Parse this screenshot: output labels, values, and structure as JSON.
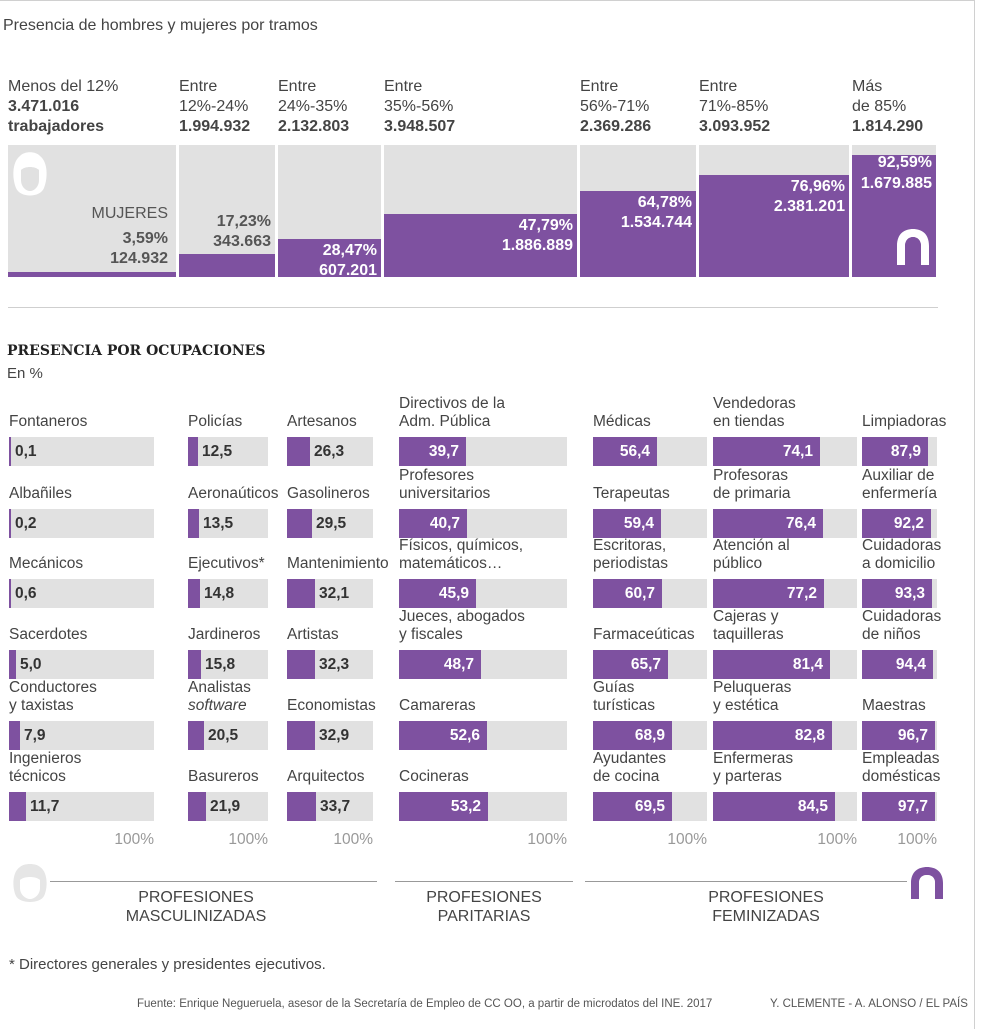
{
  "subtitle": "Presencia de hombres y mujeres por tramos",
  "bands": [
    {
      "line1": "Menos del 12%",
      "line2": "3.471.016",
      "line3": "trabajadores",
      "pct": "3,59%",
      "count": "124.932",
      "share": 3.59,
      "tag": "MUJERES"
    },
    {
      "line1": "Entre",
      "line2": "12%-24%",
      "line3": "1.994.932",
      "pct": "17,23%",
      "count": "343.663",
      "share": 17.23
    },
    {
      "line1": "Entre",
      "line2": "24%-35%",
      "line3": "2.132.803",
      "pct": "28,47%",
      "count": "607.201",
      "share": 28.47
    },
    {
      "line1": "Entre",
      "line2": "35%-56%",
      "line3": "3.948.507",
      "pct": "47,79%",
      "count": "1.886.889",
      "share": 47.79
    },
    {
      "line1": "Entre",
      "line2": "56%-71%",
      "line3": "2.369.286",
      "pct": "64,78%",
      "count": "1.534.744",
      "share": 64.78
    },
    {
      "line1": "Entre",
      "line2": "71%-85%",
      "line3": "3.093.952",
      "pct": "76,96%",
      "count": "2.381.201",
      "share": 76.96
    },
    {
      "line1": "Más",
      "line2": "de 85%",
      "line3": "1.814.290",
      "pct": "92,59%",
      "count": "1.679.885",
      "share": 92.59
    }
  ],
  "section_title": "PRESENCIA POR OCUPACIONES",
  "section_unit": "En %",
  "axis_label": "100%",
  "columns": [
    {
      "items": [
        {
          "l1": "Fontaneros",
          "l2": "",
          "v": 0.1,
          "t": "0,1"
        },
        {
          "l1": "Albañiles",
          "l2": "",
          "v": 0.2,
          "t": "0,2"
        },
        {
          "l1": "Mecánicos",
          "l2": "",
          "v": 0.6,
          "t": "0,6"
        },
        {
          "l1": "Sacerdotes",
          "l2": "",
          "v": 5.0,
          "t": "5,0"
        },
        {
          "l1": "Conductores",
          "l2": "y taxistas",
          "v": 7.9,
          "t": "7,9"
        },
        {
          "l1": "Ingenieros",
          "l2": "técnicos",
          "v": 11.7,
          "t": "11,7"
        }
      ]
    },
    {
      "items": [
        {
          "l1": "Policías",
          "l2": "",
          "v": 12.5,
          "t": "12,5"
        },
        {
          "l1": "Aeronaúticos",
          "l2": "",
          "v": 13.5,
          "t": "13,5"
        },
        {
          "l1": "Ejecutivos*",
          "l2": "",
          "v": 14.8,
          "t": "14,8"
        },
        {
          "l1": "Jardineros",
          "l2": "",
          "v": 15.8,
          "t": "15,8"
        },
        {
          "l1": "Analistas",
          "l2": "software",
          "l2i": true,
          "v": 20.5,
          "t": "20,5"
        },
        {
          "l1": "Basureros",
          "l2": "",
          "v": 21.9,
          "t": "21,9"
        }
      ]
    },
    {
      "items": [
        {
          "l1": "Artesanos",
          "l2": "",
          "v": 26.3,
          "t": "26,3"
        },
        {
          "l1": "Gasolineros",
          "l2": "",
          "v": 29.5,
          "t": "29,5"
        },
        {
          "l1": "Mantenimiento",
          "l2": "",
          "v": 32.1,
          "t": "32,1"
        },
        {
          "l1": "Artistas",
          "l2": "",
          "v": 32.3,
          "t": "32,3"
        },
        {
          "l1": "Economistas",
          "l2": "",
          "v": 32.9,
          "t": "32,9"
        },
        {
          "l1": "Arquitectos",
          "l2": "",
          "v": 33.7,
          "t": "33,7"
        }
      ]
    },
    {
      "items": [
        {
          "l1": "Directivos de la",
          "l2": "Adm. Pública",
          "v": 39.7,
          "t": "39,7"
        },
        {
          "l1": "Profesores",
          "l2": "universitarios",
          "v": 40.7,
          "t": "40,7"
        },
        {
          "l1": "Físicos, químicos,",
          "l2": "matemáticos…",
          "v": 45.9,
          "t": "45,9"
        },
        {
          "l1": "Jueces, abogados",
          "l2": "y fiscales",
          "v": 48.7,
          "t": "48,7"
        },
        {
          "l1": "Camareras",
          "l2": "",
          "v": 52.6,
          "t": "52,6"
        },
        {
          "l1": "Cocineras",
          "l2": "",
          "v": 53.2,
          "t": "53,2"
        }
      ]
    },
    {
      "items": [
        {
          "l1": "Médicas",
          "l2": "",
          "v": 56.4,
          "t": "56,4"
        },
        {
          "l1": "Terapeutas",
          "l2": "",
          "v": 59.4,
          "t": "59,4"
        },
        {
          "l1": "Escritoras,",
          "l2": "periodistas",
          "v": 60.7,
          "t": "60,7"
        },
        {
          "l1": "Farmaceúticas",
          "l2": "",
          "v": 65.7,
          "t": "65,7"
        },
        {
          "l1": "Guías",
          "l2": "turísticas",
          "v": 68.9,
          "t": "68,9"
        },
        {
          "l1": "Ayudantes",
          "l2": "de cocina",
          "v": 69.5,
          "t": "69,5"
        }
      ]
    },
    {
      "items": [
        {
          "l1": "Vendedoras",
          "l2": "en tiendas",
          "v": 74.1,
          "t": "74,1"
        },
        {
          "l1": "Profesoras",
          "l2": "de primaria",
          "v": 76.4,
          "t": "76,4"
        },
        {
          "l1": "Atención al",
          "l2": "público",
          "v": 77.2,
          "t": "77,2"
        },
        {
          "l1": "Cajeras y",
          "l2": "taquilleras",
          "v": 81.4,
          "t": "81,4"
        },
        {
          "l1": "Peluqueras",
          "l2": "y estética",
          "v": 82.8,
          "t": "82,8"
        },
        {
          "l1": "Enfermeras",
          "l2": "y parteras",
          "v": 84.5,
          "t": "84,5"
        }
      ]
    },
    {
      "items": [
        {
          "l1": "Limpiadoras",
          "l2": "",
          "v": 87.9,
          "t": "87,9"
        },
        {
          "l1": "Auxiliar de",
          "l2": "enfermería",
          "v": 92.2,
          "t": "92,2"
        },
        {
          "l1": "Cuidadoras",
          "l2": "a domicilio",
          "v": 93.3,
          "t": "93,3"
        },
        {
          "l1": "Cuidadoras",
          "l2": "de niños",
          "v": 94.4,
          "t": "94,4"
        },
        {
          "l1": "Maestras",
          "l2": "",
          "v": 96.7,
          "t": "96,7"
        },
        {
          "l1": "Empleadas",
          "l2": "domésticas",
          "v": 97.7,
          "t": "97,7"
        }
      ]
    }
  ],
  "groups": [
    {
      "l1": "PROFESIONES",
      "l2": "MASCULINIZADAS"
    },
    {
      "l1": "PROFESIONES",
      "l2": "PARITARIAS"
    },
    {
      "l1": "PROFESIONES",
      "l2": "FEMINIZADAS"
    }
  ],
  "footnote": "* Directores generales y presidentes ejecutivos.",
  "source": "Fuente: Enrique Negueruela, asesor de la Secretaría de Empleo de CC OO, a partir de microdatos del INE. 2017",
  "credit": "Y. CLEMENTE - A. ALONSO / EL PAÍS",
  "colors": {
    "women": "#7e51a0",
    "bar_bg": "#e1e1e1",
    "men_icon": "#e6e6e6"
  },
  "icons": [
    "man-head-icon",
    "woman-head-icon"
  ],
  "chart_data": [
    {
      "type": "bar",
      "categories": [
        "Menos del 12%",
        "Entre 12%-24%",
        "Entre 24%-35%",
        "Entre 35%-56%",
        "Entre 56%-71%",
        "Entre 71%-85%",
        "Más de 85%"
      ],
      "series": [
        {
          "name": "MUJERES",
          "values": [
            3.59,
            17.23,
            28.47,
            47.79,
            64.78,
            76.96,
            92.59
          ]
        }
      ],
      "totals": [
        3471016,
        1994932,
        2132803,
        3948507,
        2369286,
        3093952,
        1814290
      ],
      "women": [
        124932,
        343663,
        607201,
        1886889,
        1534744,
        2381201,
        1679885
      ],
      "ylim": [
        0,
        100
      ],
      "title": "Presencia de hombres y mujeres por tramos"
    },
    {
      "type": "bar",
      "title": "PRESENCIA POR OCUPACIONES",
      "ylabel": "En %",
      "xlim": [
        0,
        100
      ],
      "categories": [
        "Fontaneros",
        "Albañiles",
        "Mecánicos",
        "Sacerdotes",
        "Conductores y taxistas",
        "Ingenieros técnicos",
        "Policías",
        "Aeronaúticos",
        "Ejecutivos*",
        "Jardineros",
        "Analistas software",
        "Basureros",
        "Artesanos",
        "Gasolineros",
        "Mantenimiento",
        "Artistas",
        "Economistas",
        "Arquitectos",
        "Directivos de la Adm. Pública",
        "Profesores universitarios",
        "Físicos, químicos, matemáticos…",
        "Jueces, abogados y fiscales",
        "Camareras",
        "Cocineras",
        "Médicas",
        "Terapeutas",
        "Escritoras, periodistas",
        "Farmaceúticas",
        "Guías turísticas",
        "Ayudantes de cocina",
        "Vendedoras en tiendas",
        "Profesoras de primaria",
        "Atención al público",
        "Cajeras y taquilleras",
        "Peluqueras y estética",
        "Enfermeras y parteras",
        "Limpiadoras",
        "Auxiliar de enfermería",
        "Cuidadoras a domicilio",
        "Cuidadoras de niños",
        "Maestras",
        "Empleadas domésticas"
      ],
      "values": [
        0.1,
        0.2,
        0.6,
        5.0,
        7.9,
        11.7,
        12.5,
        13.5,
        14.8,
        15.8,
        20.5,
        21.9,
        26.3,
        29.5,
        32.1,
        32.3,
        32.9,
        33.7,
        39.7,
        40.7,
        45.9,
        48.7,
        52.6,
        53.2,
        56.4,
        59.4,
        60.7,
        65.7,
        68.9,
        69.5,
        74.1,
        76.4,
        77.2,
        81.4,
        82.8,
        84.5,
        87.9,
        92.2,
        93.3,
        94.4,
        96.7,
        97.7
      ]
    }
  ]
}
